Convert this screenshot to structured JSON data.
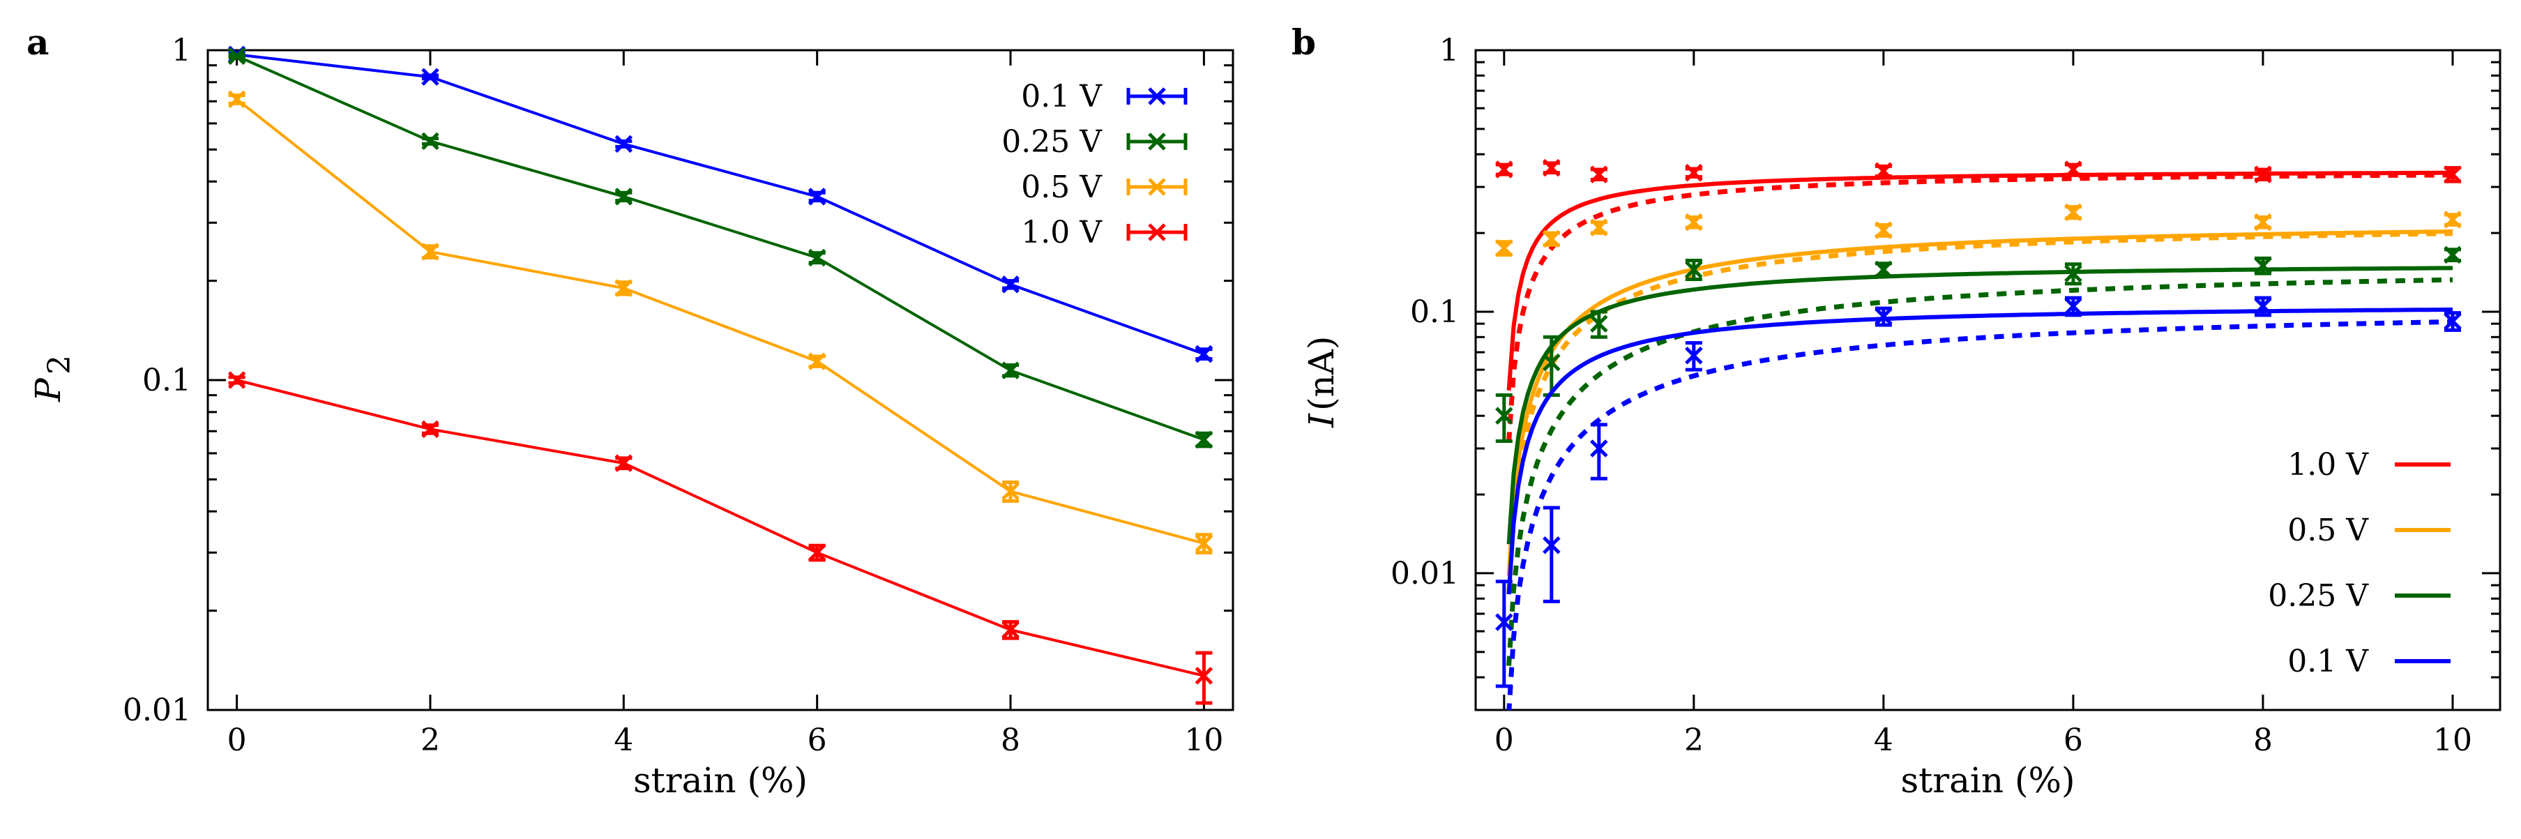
{
  "chart_data": [
    {
      "panel_label": "a",
      "type": "line",
      "xlabel": "strain (%)",
      "ylabel_main": "P",
      "ylabel_sub": "2",
      "yscale": "log",
      "xlim": [
        -0.3,
        10.3
      ],
      "ylim": [
        0.01,
        1
      ],
      "x_ticks": [
        "0",
        "2",
        "4",
        "6",
        "8",
        "10"
      ],
      "y_ticks": [
        "0.01",
        "0.1",
        "1"
      ],
      "legend_position": "top-right",
      "series": [
        {
          "name": "0.1 V",
          "color": "#0000ff",
          "x": [
            0,
            2,
            4,
            6,
            8,
            10
          ],
          "values": [
            0.97,
            0.83,
            0.52,
            0.36,
            0.195,
            0.12
          ],
          "err": [
            0.01,
            0.01,
            0.01,
            0.01,
            0.005,
            0.004
          ]
        },
        {
          "name": "0.25 V",
          "color": "#006400",
          "x": [
            0,
            2,
            4,
            6,
            8,
            10
          ],
          "values": [
            0.96,
            0.53,
            0.36,
            0.235,
            0.107,
            0.066
          ],
          "err": [
            0.01,
            0.01,
            0.01,
            0.008,
            0.004,
            0.003
          ]
        },
        {
          "name": "0.5 V",
          "color": "#ffa500",
          "x": [
            0,
            2,
            4,
            6,
            8,
            10
          ],
          "values": [
            0.71,
            0.245,
            0.19,
            0.114,
            0.046,
            0.032
          ],
          "err": [
            0.02,
            0.01,
            0.008,
            0.004,
            0.003,
            0.002
          ]
        },
        {
          "name": "1.0 V",
          "color": "#ff0000",
          "x": [
            0,
            2,
            4,
            6,
            8,
            10
          ],
          "values": [
            0.1,
            0.071,
            0.056,
            0.03,
            0.0175,
            0.0127
          ],
          "err": [
            0.002,
            0.002,
            0.002,
            0.0015,
            0.001,
            0.0022
          ]
        }
      ]
    },
    {
      "panel_label": "b",
      "type": "scatter",
      "xlabel": "strain (%)",
      "ylabel_main": "I",
      "ylabel_rest": " (nA)",
      "yscale": "log",
      "xlim": [
        -0.3,
        10.5
      ],
      "ylim": [
        0.003,
        1
      ],
      "x_ticks": [
        "0",
        "2",
        "4",
        "6",
        "8",
        "10"
      ],
      "y_ticks": [
        "0.01",
        "0.1",
        "1"
      ],
      "legend_position": "bottom-right",
      "series": [
        {
          "name": "1.0 V",
          "color": "#ff0000",
          "x": [
            0,
            0.5,
            1,
            2,
            4,
            6,
            8,
            10
          ],
          "values": [
            0.35,
            0.355,
            0.335,
            0.34,
            0.345,
            0.35,
            0.335,
            0.335
          ],
          "err": [
            0.015,
            0.015,
            0.015,
            0.012,
            0.015,
            0.015,
            0.015,
            0.02
          ],
          "fit_solid": {
            "plateau": 0.35,
            "width": 0.3
          },
          "fit_dashed": {
            "plateau": 0.35,
            "width": 0.5
          }
        },
        {
          "name": "0.5 V",
          "color": "#ffa500",
          "x": [
            0,
            0.5,
            1,
            2,
            4,
            6,
            8,
            10
          ],
          "values": [
            0.175,
            0.19,
            0.21,
            0.22,
            0.205,
            0.24,
            0.22,
            0.225
          ],
          "err": [
            0.01,
            0.01,
            0.01,
            0.01,
            0.01,
            0.012,
            0.01,
            0.01
          ],
          "fit_solid": {
            "plateau": 0.225,
            "width": 1.1
          },
          "fit_dashed": {
            "plateau": 0.225,
            "width": 1.3
          }
        },
        {
          "name": "0.25 V",
          "color": "#006400",
          "x": [
            0,
            0.5,
            1,
            2,
            4,
            6,
            8,
            10
          ],
          "values": [
            0.04,
            0.064,
            0.09,
            0.145,
            0.145,
            0.14,
            0.15,
            0.165
          ],
          "err": [
            0.008,
            0.016,
            0.01,
            0.012,
            0.008,
            0.012,
            0.01,
            0.008
          ],
          "fit_solid": {
            "plateau": 0.155,
            "width": 0.55
          },
          "fit_dashed": {
            "plateau": 0.155,
            "width": 1.7
          }
        },
        {
          "name": "0.1 V",
          "color": "#0000ff",
          "x": [
            0,
            0.5,
            1,
            2,
            4,
            6,
            8,
            10
          ],
          "values": [
            0.0065,
            0.0128,
            0.03,
            0.068,
            0.096,
            0.105,
            0.105,
            0.092
          ],
          "err": [
            0.0028,
            0.005,
            0.007,
            0.008,
            0.007,
            0.008,
            0.008,
            0.007
          ],
          "fit_solid": {
            "plateau": 0.108,
            "width": 0.6
          },
          "fit_dashed": {
            "plateau": 0.108,
            "width": 1.8
          }
        }
      ]
    }
  ]
}
